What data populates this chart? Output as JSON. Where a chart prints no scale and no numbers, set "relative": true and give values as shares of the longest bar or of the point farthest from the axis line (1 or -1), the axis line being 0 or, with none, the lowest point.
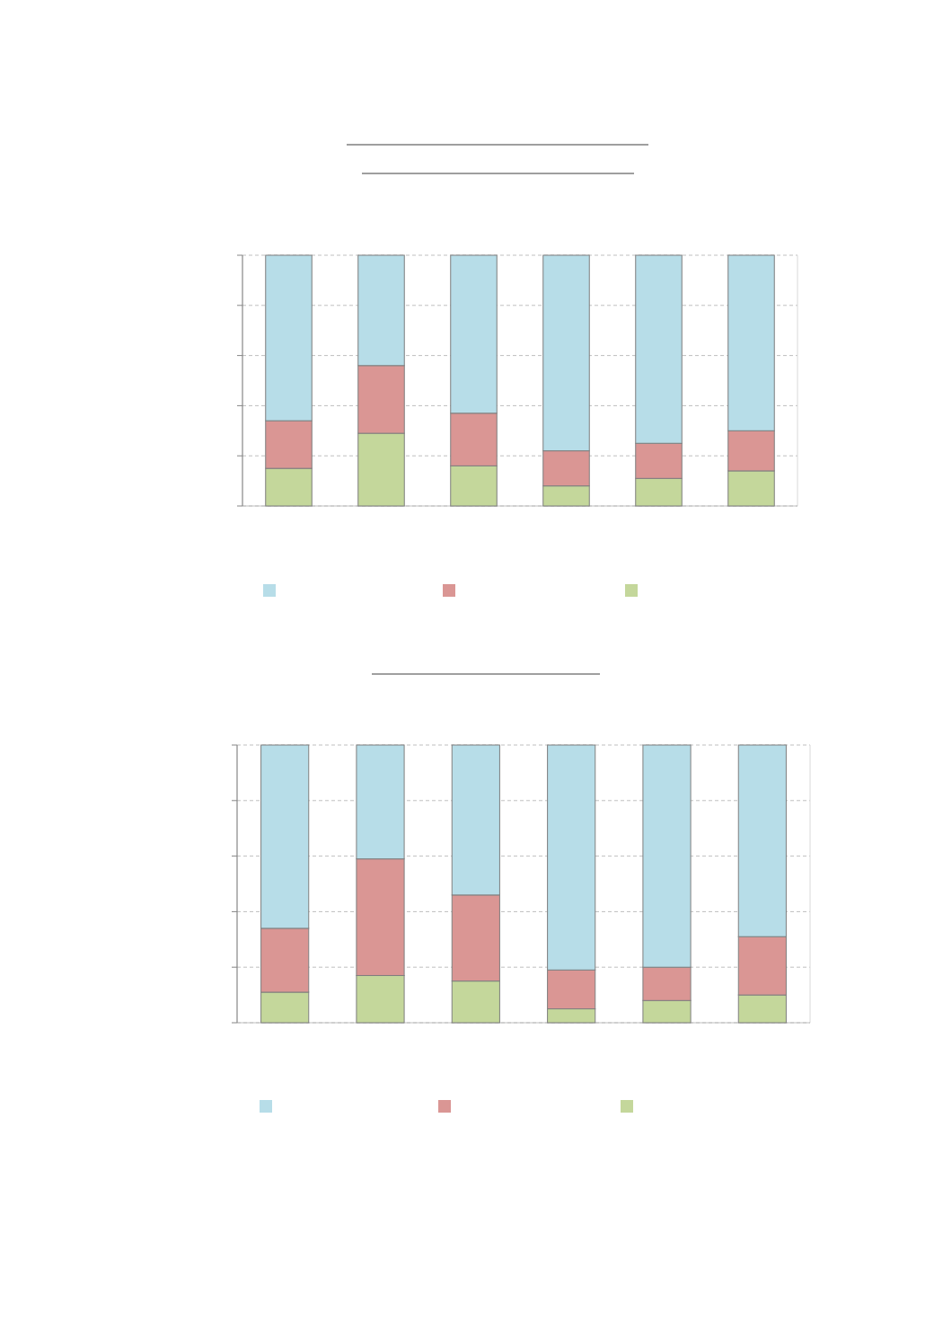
{
  "chart_data": [
    {
      "type": "bar",
      "stacked": true,
      "relative": true,
      "grid": "y",
      "categories": [
        null,
        null,
        null,
        null,
        null,
        null
      ],
      "series": [
        {
          "color": "#c4d79b",
          "values": [
            0.15,
            0.29,
            0.16,
            0.08,
            0.11,
            0.14
          ]
        },
        {
          "color": "#da9694",
          "values": [
            0.19,
            0.27,
            0.21,
            0.14,
            0.14,
            0.16
          ]
        },
        {
          "color": "#b7dde8",
          "values": [
            0.66,
            0.44,
            0.63,
            0.78,
            0.75,
            0.7
          ]
        }
      ]
    },
    {
      "type": "bar",
      "stacked": true,
      "relative": true,
      "grid": "y",
      "categories": [
        null,
        null,
        null,
        null,
        null,
        null
      ],
      "series": [
        {
          "color": "#c4d79b",
          "values": [
            0.11,
            0.17,
            0.15,
            0.05,
            0.08,
            0.1
          ]
        },
        {
          "color": "#da9694",
          "values": [
            0.23,
            0.42,
            0.31,
            0.14,
            0.12,
            0.21
          ]
        },
        {
          "color": "#b7dde8",
          "values": [
            0.66,
            0.41,
            0.54,
            0.81,
            0.8,
            0.69
          ]
        }
      ]
    }
  ]
}
